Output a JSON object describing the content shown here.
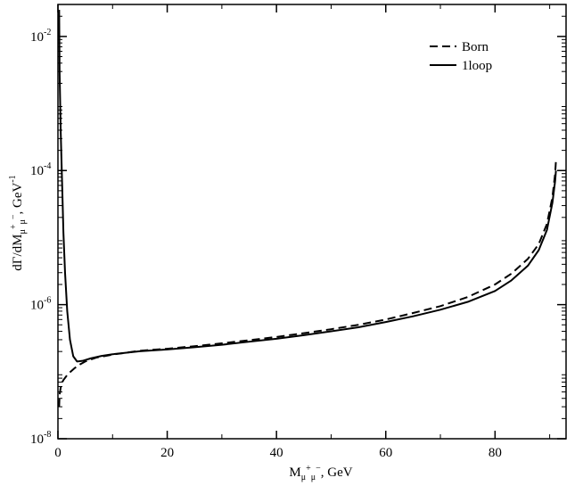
{
  "chart_data": {
    "type": "line",
    "title": "",
    "xlabel": {
      "base": "M",
      "sub": "μ",
      "sup1": "+",
      "sub2": "μ",
      "sup2": "−",
      "tail": ", GeV"
    },
    "ylabel": {
      "pre": "dΓ/dM",
      "sub": "μ",
      "sup1": "+",
      "sub2": "μ",
      "sup2": "−",
      "mid": ", GeV",
      "unitexp": "-1"
    },
    "xlim": [
      0,
      93
    ],
    "ylim": [
      1e-08,
      0.03
    ],
    "yscale": "log",
    "x_ticks": [
      {
        "value": 0,
        "label": "0"
      },
      {
        "value": 20,
        "label": "20"
      },
      {
        "value": 40,
        "label": "40"
      },
      {
        "value": 60,
        "label": "60"
      },
      {
        "value": 80,
        "label": "80"
      }
    ],
    "y_ticks": [
      {
        "value": 1e-08,
        "base": "10",
        "exp": "-8"
      },
      {
        "value": 1e-06,
        "base": "10",
        "exp": "-6"
      },
      {
        "value": 0.0001,
        "base": "10",
        "exp": "-4"
      },
      {
        "value": 0.01,
        "base": "10",
        "exp": "-2"
      }
    ],
    "legend": {
      "position": "top-right"
    },
    "series": [
      {
        "name": "Born",
        "style": "dashed",
        "x": [
          0.22,
          0.3,
          0.5,
          0.8,
          1,
          1.5,
          2,
          3,
          4,
          5,
          7,
          10,
          15,
          20,
          25,
          30,
          35,
          40,
          45,
          50,
          55,
          60,
          65,
          70,
          75,
          80,
          83,
          86,
          88,
          89.5,
          90.5,
          91,
          91.15
        ],
        "y": [
          3e-08,
          4.5e-08,
          5.8e-08,
          7e-08,
          7.5e-08,
          8.5e-08,
          9.5e-08,
          1.12e-07,
          1.28e-07,
          1.42e-07,
          1.62e-07,
          1.8e-07,
          2.05e-07,
          2.2e-07,
          2.4e-07,
          2.65e-07,
          2.95e-07,
          3.3e-07,
          3.75e-07,
          4.3e-07,
          5e-07,
          6e-07,
          7.5e-07,
          9.5e-07,
          1.3e-06,
          2e-06,
          2.9e-06,
          4.8e-06,
          8e-06,
          1.6e-05,
          4e-05,
          9e-05,
          0.00014
        ]
      },
      {
        "name": "1loop",
        "style": "solid",
        "x": [
          0.22,
          0.3,
          0.5,
          0.8,
          1,
          1.3,
          1.7,
          2.2,
          2.8,
          3.5,
          4.5,
          6,
          8,
          10,
          15,
          20,
          25,
          30,
          35,
          40,
          45,
          50,
          55,
          60,
          65,
          70,
          75,
          80,
          83,
          86,
          88,
          89.5,
          90.5,
          91,
          91.15
        ],
        "y": [
          0.025,
          0.003,
          0.0004,
          5e-05,
          1.2e-05,
          3e-06,
          8e-07,
          3e-07,
          1.7e-07,
          1.42e-07,
          1.45e-07,
          1.58e-07,
          1.72e-07,
          1.82e-07,
          2.02e-07,
          2.15e-07,
          2.32e-07,
          2.52e-07,
          2.8e-07,
          3.1e-07,
          3.5e-07,
          4e-07,
          4.6e-07,
          5.5e-07,
          6.7e-07,
          8.4e-07,
          1.1e-06,
          1.6e-06,
          2.3e-06,
          3.8e-06,
          6.5e-06,
          1.3e-05,
          3.3e-05,
          7e-05,
          0.0001
        ]
      }
    ]
  }
}
